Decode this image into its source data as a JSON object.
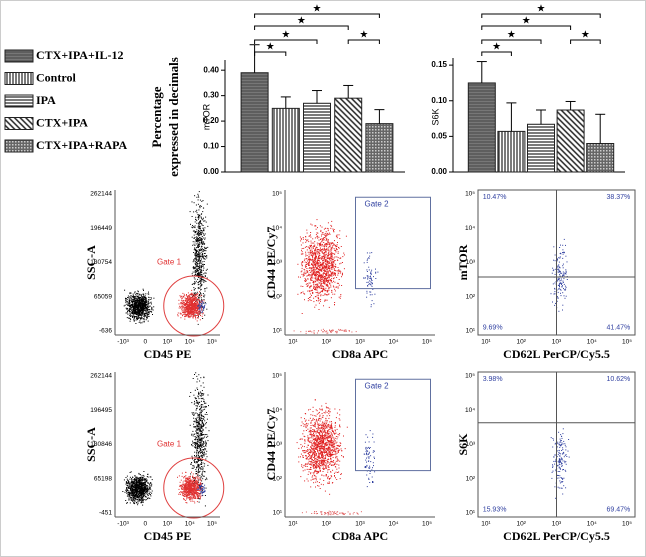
{
  "legend": [
    "CTX+IPA+IL-12",
    "Control",
    "IPA",
    "CTX+IPA",
    "CTX+IPA+RAPA"
  ],
  "shared_ylabel": [
    "Percentage",
    "expressed in decimals"
  ],
  "chart_data": [
    {
      "type": "bar",
      "ylabel": "mTOR",
      "values": [
        0.39,
        0.25,
        0.27,
        0.29,
        0.19
      ],
      "errors": [
        0.11,
        0.045,
        0.05,
        0.05,
        0.055
      ],
      "ylim": [
        0,
        0.44
      ],
      "yticks": [
        {
          "value": 0,
          "label": "0.00"
        },
        {
          "value": 0.1,
          "label": "0.10"
        },
        {
          "value": 0.2,
          "label": "0.20"
        },
        {
          "value": 0.3,
          "label": "0.30"
        },
        {
          "value": 0.4,
          "label": "0.40"
        }
      ],
      "significance": [
        {
          "from": 0,
          "to": 1,
          "label": "★"
        },
        {
          "from": 0,
          "to": 2,
          "label": "★"
        },
        {
          "from": 0,
          "to": 3,
          "label": "★"
        },
        {
          "from": 0,
          "to": 4,
          "label": "★"
        },
        {
          "from": 3,
          "to": 4,
          "label": "★"
        }
      ]
    },
    {
      "type": "bar",
      "ylabel": "S6K",
      "values": [
        0.125,
        0.057,
        0.067,
        0.087,
        0.04
      ],
      "errors": [
        0.03,
        0.04,
        0.02,
        0.012,
        0.041
      ],
      "ylim": [
        0,
        0.16
      ],
      "yticks": [
        {
          "value": 0,
          "label": "0.00"
        },
        {
          "value": 0.05,
          "label": "0.05"
        },
        {
          "value": 0.1,
          "label": "0.10"
        },
        {
          "value": 0.15,
          "label": "0.15"
        }
      ],
      "significance": [
        {
          "from": 0,
          "to": 1,
          "label": "★"
        },
        {
          "from": 0,
          "to": 2,
          "label": "★"
        },
        {
          "from": 0,
          "to": 3,
          "label": "★"
        },
        {
          "from": 0,
          "to": 4,
          "label": "★"
        },
        {
          "from": 3,
          "to": 4,
          "label": "★"
        }
      ]
    }
  ],
  "flow_panels": [
    {
      "kind": "ssc",
      "ylabel": "SSC-A",
      "xlabel": "CD45 PE",
      "yticks": [
        "262144",
        "196449",
        "130754",
        "65059",
        "-636"
      ],
      "xticks": [
        "-10³",
        "0",
        "10³",
        "10⁴",
        "10⁵"
      ],
      "gate": "Gate 1"
    },
    {
      "kind": "cd44",
      "ylabel": "CD44 PE/Cy7",
      "xlabel": "CD8a APC",
      "yticks": [
        "10⁵",
        "10⁴",
        "10³",
        "10²",
        "10¹"
      ],
      "xticks": [
        "10¹",
        "10²",
        "10³",
        "10⁴",
        "10⁵"
      ],
      "gate": "Gate 2"
    },
    {
      "kind": "quad",
      "ylabel": "mTOR",
      "xlabel": "CD62L PerCP/Cy5.5",
      "yticks": [
        "10⁵",
        "10⁴",
        "10³",
        "10²",
        "10¹"
      ],
      "xticks": [
        "10¹",
        "10²",
        "10³",
        "10⁴",
        "10⁵"
      ],
      "quadrants": [
        "10.47%",
        "38.37%",
        "9.69%",
        "41.47%"
      ]
    },
    {
      "kind": "ssc",
      "ylabel": "SSC-A",
      "xlabel": "CD45 PE",
      "yticks": [
        "262144",
        "196495",
        "130846",
        "65198",
        "-451"
      ],
      "xticks": [
        "-10³",
        "0",
        "10³",
        "10⁴",
        "10⁵"
      ],
      "gate": "Gate 1"
    },
    {
      "kind": "cd44",
      "ylabel": "CD44 PE/Cy7",
      "xlabel": "CD8a APC",
      "yticks": [
        "10⁵",
        "10⁴",
        "10³",
        "10²",
        "10¹"
      ],
      "xticks": [
        "10¹",
        "10²",
        "10³",
        "10⁴",
        "10⁵"
      ],
      "gate": "Gate 2"
    },
    {
      "kind": "quad",
      "ylabel": "S6K",
      "xlabel": "CD62L PerCP/Cy5.5",
      "yticks": [
        "10⁵",
        "10⁴",
        "10³",
        "10²",
        "10¹"
      ],
      "xticks": [
        "10¹",
        "10²",
        "10³",
        "10⁴",
        "10⁵"
      ],
      "quadrants": [
        "3.98%",
        "10.62%",
        "15.93%",
        "69.47%"
      ]
    }
  ]
}
